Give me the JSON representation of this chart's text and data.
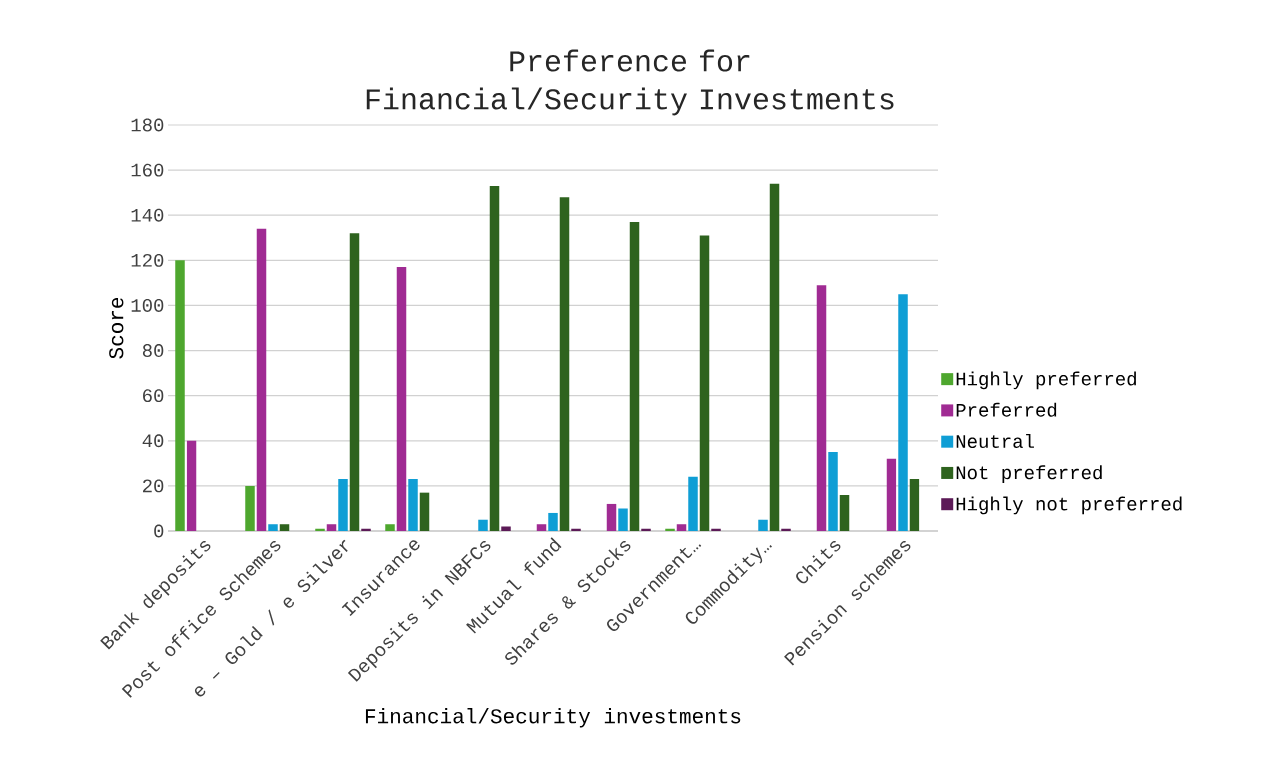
{
  "chart_data": {
    "type": "bar",
    "title": "Preference for Financial/Security Investments",
    "xlabel": "Financial/Security investments",
    "ylabel": "Score",
    "categories": [
      "Bank deposits",
      "Post office Schemes",
      "e – Gold / e Silver",
      "Insurance",
      "Deposits in NBFCs",
      "Mutual fund",
      "Shares & Stocks",
      "Government…",
      "Commodity…",
      "Chits",
      "Pension schemes"
    ],
    "series": [
      {
        "name": "Highly preferred",
        "color": "#4ea72e",
        "values": [
          120,
          20,
          1,
          3,
          0,
          0,
          0,
          1,
          0,
          0,
          0
        ]
      },
      {
        "name": "Preferred",
        "color": "#a02b93",
        "values": [
          40,
          134,
          3,
          117,
          0,
          3,
          12,
          3,
          0,
          109,
          32
        ]
      },
      {
        "name": "Neutral",
        "color": "#0f9ed5",
        "values": [
          0,
          3,
          23,
          23,
          5,
          8,
          10,
          24,
          5,
          35,
          105
        ]
      },
      {
        "name": "Not preferred",
        "color": "#2e631e",
        "values": [
          0,
          3,
          132,
          17,
          153,
          148,
          137,
          131,
          154,
          16,
          23
        ]
      },
      {
        "name": "Highly not preferred",
        "color": "#5c1a57",
        "values": [
          0,
          0,
          1,
          0,
          2,
          1,
          1,
          1,
          1,
          0,
          0
        ]
      }
    ],
    "ylim": [
      0,
      180
    ],
    "yticks": [
      0,
      20,
      40,
      60,
      80,
      100,
      120,
      140,
      160,
      180
    ],
    "grid": "y",
    "legend": "right"
  }
}
